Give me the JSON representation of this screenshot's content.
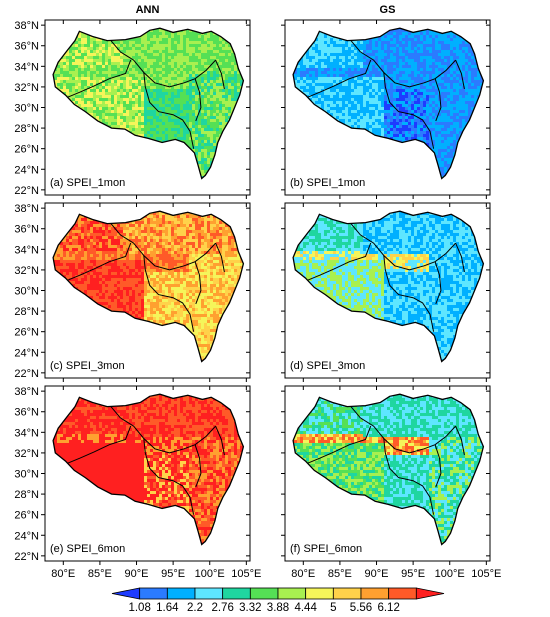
{
  "column_titles": [
    "ANN",
    "GS"
  ],
  "lat_labels": [
    "38°N",
    "36°N",
    "34°N",
    "32°N",
    "30°N",
    "28°N",
    "26°N",
    "24°N",
    "22°N"
  ],
  "lon_labels": [
    "80°E",
    "85°E",
    "90°E",
    "95°E",
    "100°E",
    "105°E"
  ],
  "panels": [
    {
      "label": "(a) SPEI_1mon",
      "scheme": "ann1"
    },
    {
      "label": "(b) SPEI_1mon",
      "scheme": "gs1"
    },
    {
      "label": "(c) SPEI_3mon",
      "scheme": "ann3"
    },
    {
      "label": "(d) SPEI_3mon",
      "scheme": "gs3"
    },
    {
      "label": "(e) SPEI_6mon",
      "scheme": "ann6"
    },
    {
      "label": "(f) SPEI_6mon",
      "scheme": "gs6"
    }
  ],
  "colorbar": {
    "labels": [
      "1.08",
      "1.64",
      "2.2",
      "2.76",
      "3.32",
      "3.88",
      "4.44",
      "5",
      "5.56",
      "6.12"
    ],
    "colors": [
      "#1e3cff",
      "#2b7bff",
      "#00b0ff",
      "#5ee6ff",
      "#1fd6a0",
      "#55e055",
      "#a8f050",
      "#f5f55a",
      "#ffd24a",
      "#ffa030",
      "#ff5a28",
      "#ff2020"
    ]
  }
}
